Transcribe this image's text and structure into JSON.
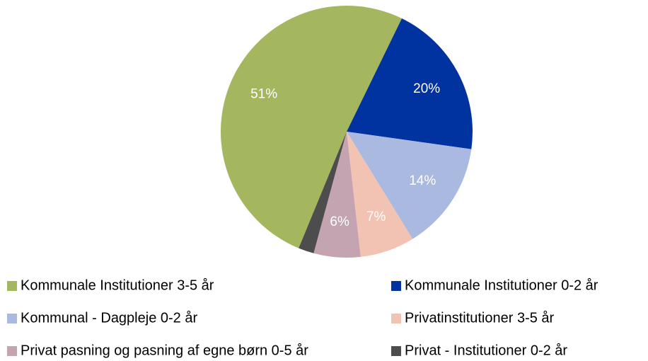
{
  "chart_data": {
    "type": "pie",
    "categories": [
      "Kommunale Institutioner 3-5 år",
      "Kommunale Institutioner 0-2 år",
      "Kommunal - Dagpleje 0-2 år",
      "Privatinstitutioner 3-5 år",
      "Privat pasning og pasning af egne børn 0-5 år",
      "Privat - Institutioner 0-2 år"
    ],
    "values": [
      51,
      20,
      14,
      7,
      6,
      2
    ],
    "value_labels": [
      "51%",
      "20%",
      "14%",
      "7%",
      "6%",
      null
    ],
    "colors": [
      "#a5b75e",
      "#0033a0",
      "#a9b9e0",
      "#f2c3b2",
      "#c4a4b0",
      "#4d4d4d"
    ],
    "legend": "bottom"
  }
}
